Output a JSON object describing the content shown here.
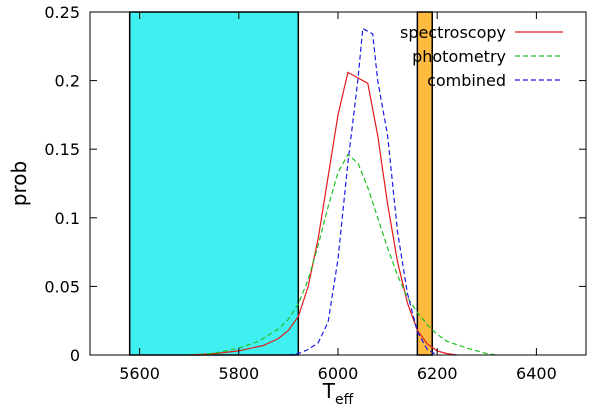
{
  "chart_data": {
    "type": "line",
    "xlabel": "T",
    "xlabel_sub": "eff",
    "ylabel": "prob",
    "xlim": [
      5500,
      6500
    ],
    "ylim": [
      0,
      0.25
    ],
    "xticks": [
      5600,
      5800,
      6000,
      6200,
      6400
    ],
    "yticks": [
      0,
      0.05,
      0.1,
      0.15,
      0.2,
      0.25
    ],
    "ytick_labels": [
      "0",
      "0.05",
      "0.1",
      "0.15",
      "0.2",
      "0.25"
    ],
    "legend_position": "top-right",
    "bands": [
      {
        "x0": 5580,
        "x1": 5920,
        "color": "#40f0f0"
      },
      {
        "x0": 6160,
        "x1": 6190,
        "color": "#ffba40"
      }
    ],
    "series": [
      {
        "name": "spectroscopy",
        "color": "#e41a1a",
        "dash": "solid",
        "x": [
          5700,
          5750,
          5800,
          5850,
          5880,
          5900,
          5920,
          5940,
          5960,
          5980,
          6000,
          6020,
          6040,
          6060,
          6080,
          6100,
          6120,
          6140,
          6160,
          6180,
          6200,
          6220,
          6240
        ],
        "y": [
          0,
          0.001,
          0.003,
          0.007,
          0.012,
          0.018,
          0.028,
          0.05,
          0.085,
          0.13,
          0.175,
          0.206,
          0.202,
          0.198,
          0.16,
          0.11,
          0.068,
          0.038,
          0.018,
          0.008,
          0.003,
          0.001,
          0
        ]
      },
      {
        "name": "photometry",
        "color": "#1fbf1f",
        "dash": "dashed",
        "x": [
          5720,
          5760,
          5800,
          5840,
          5880,
          5900,
          5920,
          5940,
          5960,
          5980,
          6000,
          6020,
          6040,
          6060,
          6080,
          6100,
          6120,
          6140,
          6160,
          6180,
          6200,
          6220,
          6260,
          6300,
          6320
        ],
        "y": [
          0,
          0.002,
          0.005,
          0.01,
          0.019,
          0.026,
          0.037,
          0.055,
          0.08,
          0.108,
          0.133,
          0.146,
          0.14,
          0.122,
          0.1,
          0.078,
          0.058,
          0.042,
          0.031,
          0.022,
          0.015,
          0.01,
          0.005,
          0.001,
          0
        ]
      },
      {
        "name": "combined",
        "color": "#1a1ae6",
        "dash": "dashed",
        "x": [
          5900,
          5920,
          5940,
          5960,
          5980,
          6000,
          6020,
          6040,
          6050,
          6060,
          6070,
          6080,
          6100,
          6120,
          6140,
          6160,
          6180,
          6200
        ],
        "y": [
          0,
          0.001,
          0.004,
          0.009,
          0.024,
          0.07,
          0.14,
          0.2,
          0.238,
          0.236,
          0.234,
          0.2,
          0.16,
          0.09,
          0.045,
          0.017,
          0.004,
          0
        ]
      }
    ]
  }
}
